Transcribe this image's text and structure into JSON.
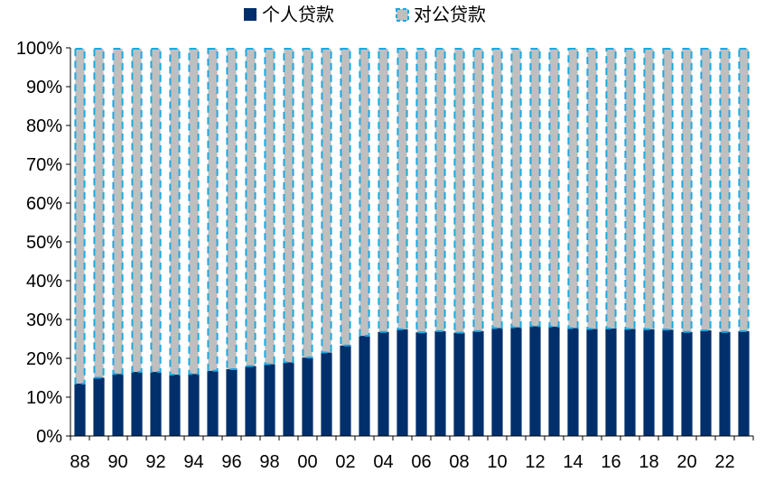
{
  "chart_data": {
    "type": "bar",
    "stacked": true,
    "percent": true,
    "title": "",
    "xlabel": "",
    "ylabel": "",
    "ylim": [
      0,
      100
    ],
    "yticks": [
      "0%",
      "10%",
      "20%",
      "30%",
      "40%",
      "50%",
      "60%",
      "70%",
      "80%",
      "90%",
      "100%"
    ],
    "categories": [
      "88",
      "89",
      "90",
      "91",
      "92",
      "93",
      "94",
      "95",
      "96",
      "97",
      "98",
      "99",
      "00",
      "01",
      "02",
      "03",
      "04",
      "05",
      "06",
      "07",
      "08",
      "09",
      "10",
      "11",
      "12",
      "13",
      "14",
      "15",
      "16",
      "17",
      "18",
      "19",
      "20",
      "21",
      "22",
      "23"
    ],
    "xtick_labels": [
      "88",
      "90",
      "92",
      "94",
      "96",
      "98",
      "00",
      "02",
      "04",
      "06",
      "08",
      "10",
      "12",
      "14",
      "16",
      "18",
      "20",
      "22"
    ],
    "legend": {
      "position": "top",
      "items": [
        "个人贷款",
        "对公贷款"
      ]
    },
    "series": [
      {
        "name": "个人贷款",
        "color": "#002F6C",
        "values": [
          13.5,
          15,
          16,
          16.5,
          16.5,
          15.8,
          16,
          16.8,
          17.2,
          18,
          18.5,
          19,
          20.2,
          21.5,
          23.3,
          25.8,
          26.8,
          27.5,
          26.7,
          27,
          26.6,
          27,
          27.8,
          28,
          28.3,
          28.2,
          27.8,
          27.6,
          27.7,
          27.6,
          27.5,
          27.4,
          26.8,
          27.2,
          26.8,
          27
        ]
      },
      {
        "name": "对公贷款",
        "color": "#BFBFBF",
        "border": "#1BA9E1",
        "values": [
          86.5,
          85,
          84,
          83.5,
          83.5,
          84.2,
          84,
          83.2,
          82.8,
          82,
          81.5,
          81,
          79.8,
          78.5,
          76.7,
          74.2,
          73.2,
          72.5,
          73.3,
          73,
          73.4,
          73,
          72.2,
          72,
          71.7,
          71.8,
          72.2,
          72.4,
          72.3,
          72.4,
          72.5,
          72.6,
          73.2,
          72.8,
          73.2,
          73
        ]
      }
    ]
  }
}
